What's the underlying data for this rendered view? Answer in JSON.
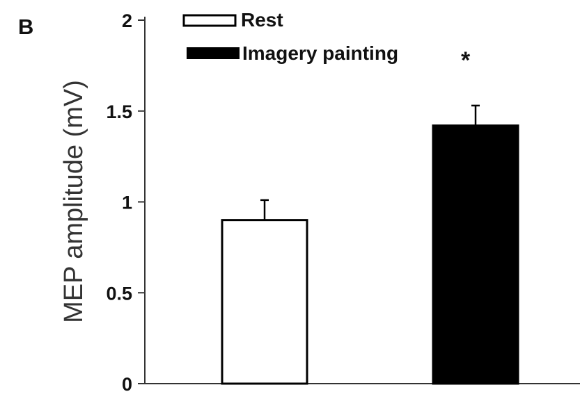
{
  "panel_label": "B",
  "chart_data": {
    "type": "bar",
    "categories": [
      "Rest",
      "Imagery painting"
    ],
    "values": [
      0.9,
      1.42
    ],
    "errors": [
      0.11,
      0.11
    ],
    "ylabel": "MEP amplitude (mV)",
    "xlabel": "",
    "ylim": [
      0,
      2
    ],
    "yticks": [
      "0",
      "0.5",
      "1",
      "1.5",
      "2"
    ],
    "ytick_values": [
      0,
      0.5,
      1,
      1.5,
      2
    ],
    "series": [
      {
        "name": "Rest",
        "value": 0.9,
        "fill": "#ffffff",
        "stroke": "#000000"
      },
      {
        "name": "Imagery painting",
        "value": 1.42,
        "fill": "#000000",
        "stroke": "#000000"
      }
    ],
    "legend": {
      "placement": "top",
      "entries": [
        "Rest",
        "Imagery painting"
      ]
    },
    "significance_marker": "*",
    "grid": false
  }
}
